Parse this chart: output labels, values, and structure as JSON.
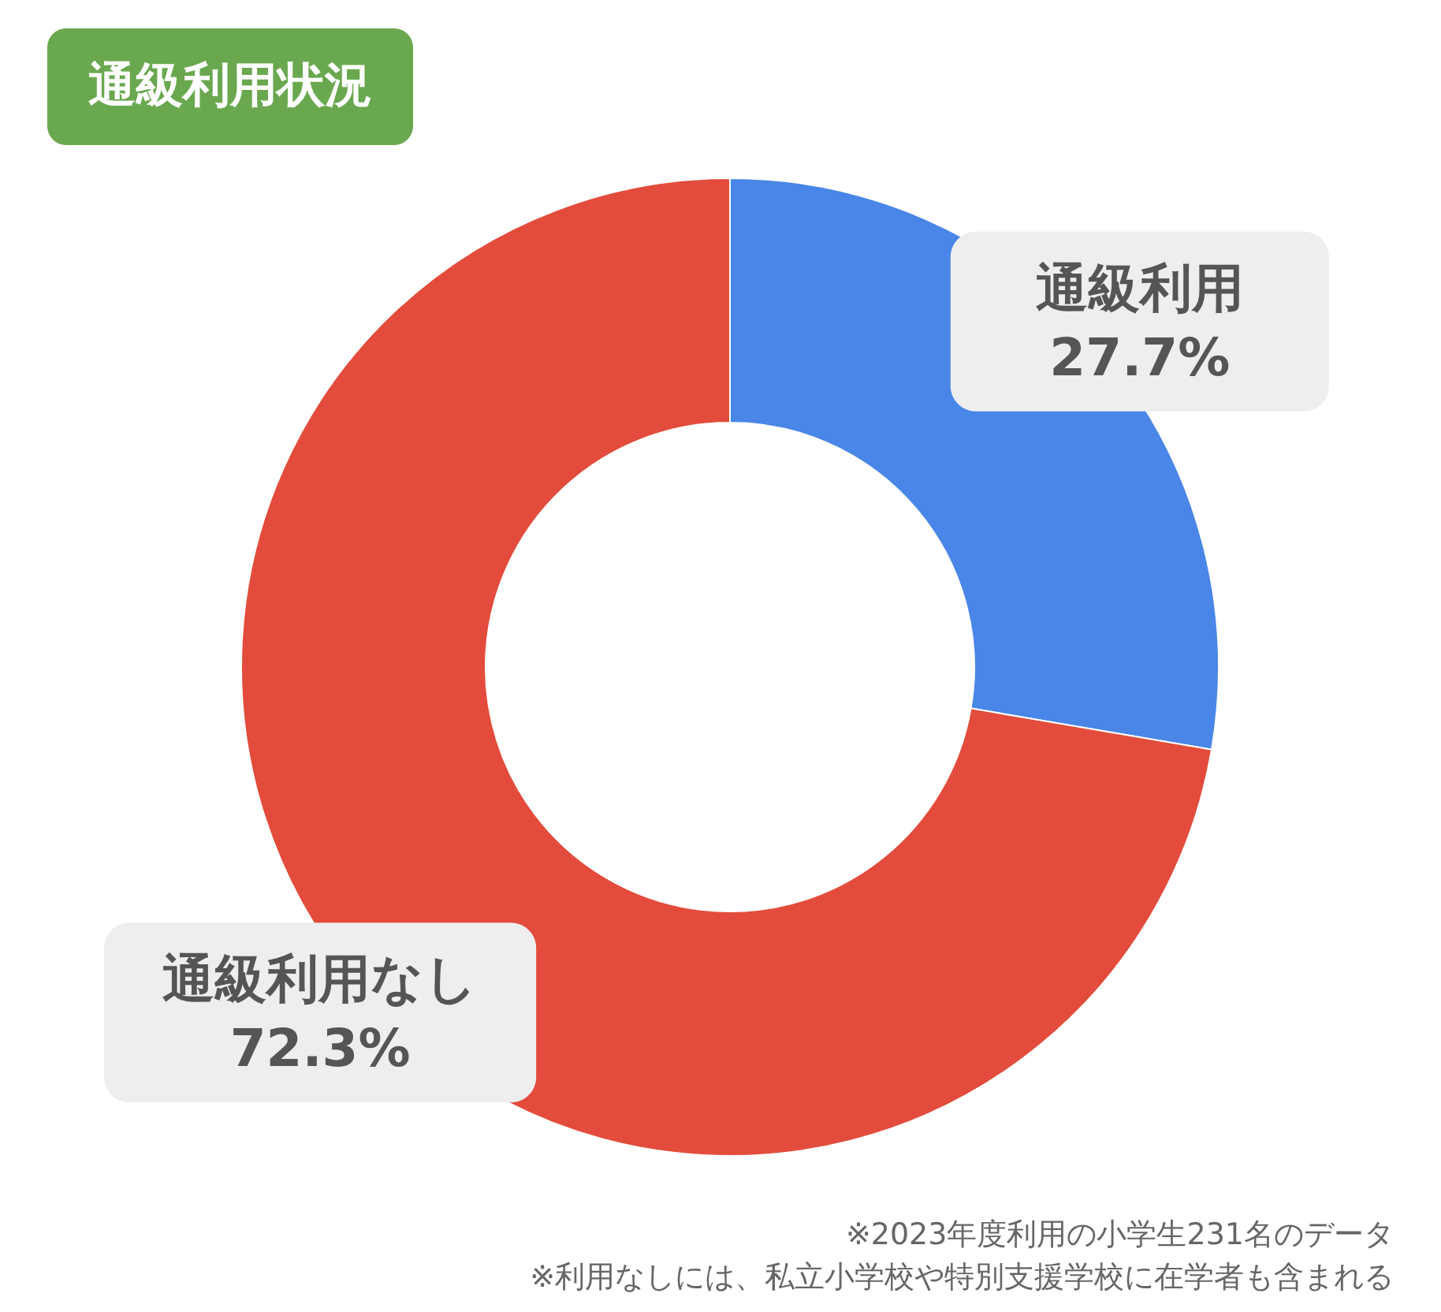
{
  "chart_data": {
    "type": "donut",
    "title": "通級利用状況",
    "categories": [
      "通級利用",
      "通級利用なし"
    ],
    "values": [
      27.7,
      72.3
    ],
    "colors": [
      "#4a86e8",
      "#e34c3c"
    ],
    "value_labels": [
      "27.7%",
      "72.3%"
    ],
    "annotations": [
      "※2023年度利用の小学生231名のデータ",
      "※利用なしには、私立小学校や特別支援学校に在学者も含まれる"
    ]
  }
}
